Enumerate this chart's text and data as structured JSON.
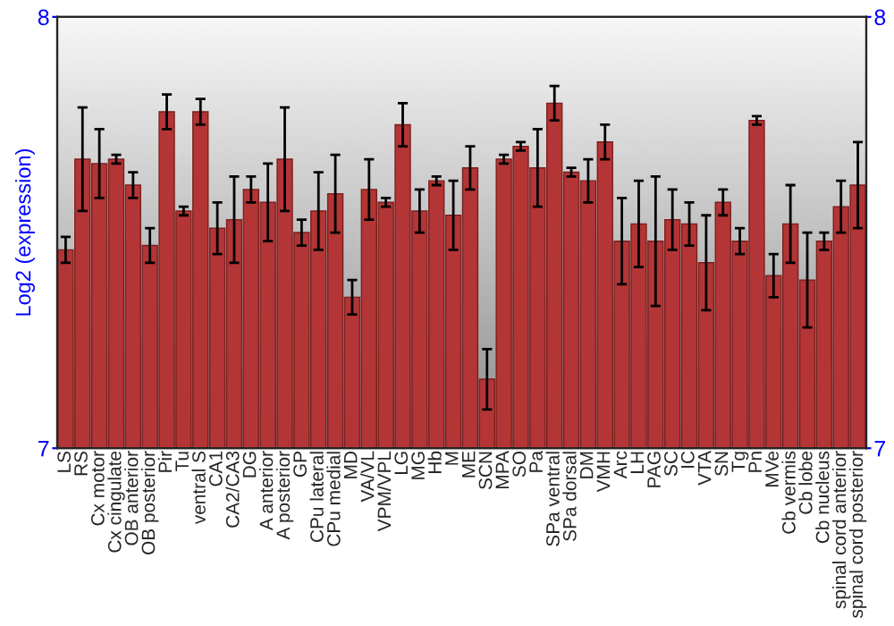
{
  "chart_data": {
    "type": "bar",
    "ylabel": "Log2 (expression)",
    "categories": [
      "LS",
      "RS",
      "Cx motor",
      "Cx cingulate",
      "OB anterior",
      "OB posterior",
      "Pir",
      "Tu",
      "ventral S",
      "CA1",
      "CA2/CA3",
      "DG",
      "A anterior",
      "A posterior",
      "GP",
      "CPu lateral",
      "CPu medial",
      "MD",
      "VA/VL",
      "VPM/VPL",
      "LG",
      "MG",
      "Hb",
      "M",
      "ME",
      "SCN",
      "MPA",
      "SO",
      "Pa",
      "SPa ventral",
      "SPa dorsal",
      "DM",
      "VMH",
      "Arc",
      "LH",
      "PAG",
      "SC",
      "IC",
      "VTA",
      "SN",
      "Tg",
      "Pn",
      "MVe",
      "Cb vermis",
      "Cb lobe",
      "Cb nucleus",
      "spinal cord anterior",
      "spinal cord posterior"
    ],
    "values": [
      7.46,
      7.67,
      7.66,
      7.67,
      7.61,
      7.47,
      7.78,
      7.55,
      7.78,
      7.51,
      7.53,
      7.6,
      7.57,
      7.67,
      7.5,
      7.55,
      7.59,
      7.35,
      7.6,
      7.57,
      7.75,
      7.55,
      7.62,
      7.54,
      7.65,
      7.16,
      7.67,
      7.7,
      7.65,
      7.8,
      7.64,
      7.62,
      7.71,
      7.48,
      7.52,
      7.48,
      7.53,
      7.52,
      7.43,
      7.57,
      7.48,
      7.76,
      7.4,
      7.52,
      7.39,
      7.48,
      7.56,
      7.61
    ],
    "errors": [
      0.03,
      0.12,
      0.08,
      0.01,
      0.03,
      0.04,
      0.04,
      0.01,
      0.03,
      0.06,
      0.1,
      0.03,
      0.09,
      0.12,
      0.03,
      0.09,
      0.09,
      0.04,
      0.07,
      0.01,
      0.05,
      0.05,
      0.01,
      0.08,
      0.05,
      0.07,
      0.01,
      0.01,
      0.09,
      0.04,
      0.01,
      0.05,
      0.04,
      0.1,
      0.1,
      0.15,
      0.07,
      0.05,
      0.11,
      0.03,
      0.03,
      0.01,
      0.05,
      0.09,
      0.11,
      0.02,
      0.06,
      0.1
    ],
    "color": "#b33535",
    "ylim": [
      7,
      8
    ],
    "yticks": [
      7,
      8
    ],
    "y2lim": [
      7,
      8
    ],
    "y2ticks": [
      7,
      8
    ],
    "grid": false,
    "legend": false
  }
}
